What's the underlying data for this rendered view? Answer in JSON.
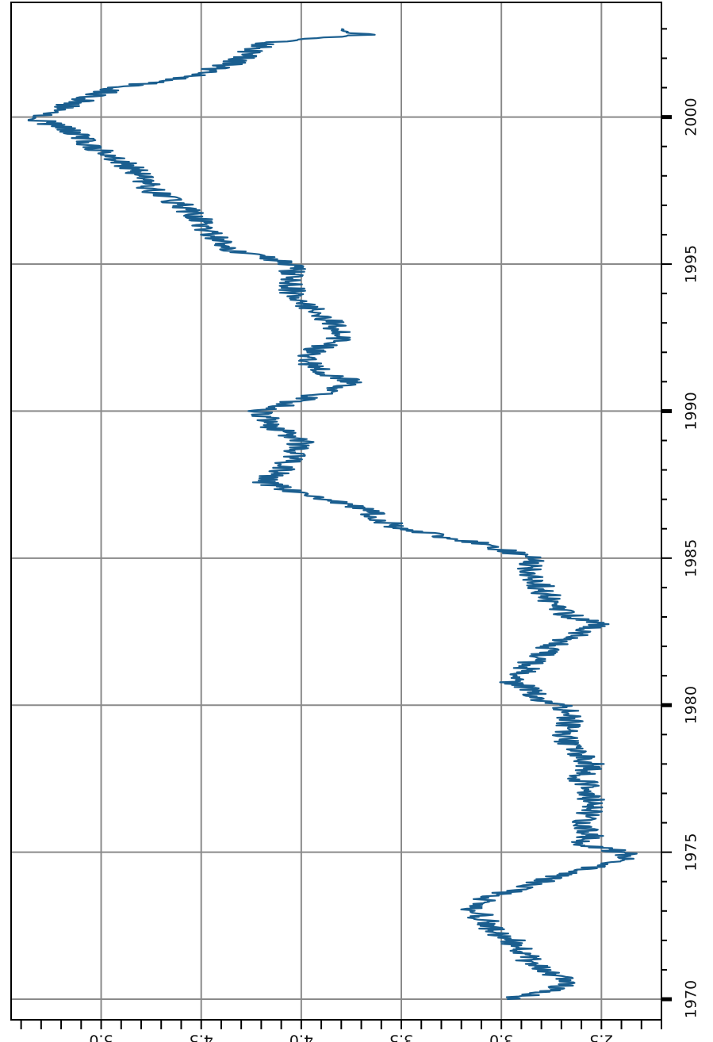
{
  "chart_data": {
    "type": "line",
    "title": "",
    "xlabel": "",
    "ylabel": "",
    "orientation": "rotated 90 degrees clockwise (time axis vertical on right, value axis horizontal at bottom, labels rotated)",
    "xlim": [
      1969.3,
      2003.9
    ],
    "ylim": [
      2.2,
      5.45
    ],
    "x_ticks": [
      "1970",
      "1975",
      "1980",
      "1985",
      "1990",
      "1995",
      "2000"
    ],
    "y_ticks": [
      "2.5",
      "3.0",
      "3.5",
      "4.0",
      "4.5",
      "5.0"
    ],
    "grid": true,
    "colors": {
      "line": "#1a5e8f",
      "grid": "#8a8a8a",
      "axis": "#000000"
    },
    "series": [
      {
        "x": [
          1970.0,
          1970.3,
          1970.6,
          1970.9,
          1971.2,
          1971.6,
          1972.0,
          1972.4,
          1972.8,
          1973.1,
          1973.5,
          1973.9,
          1974.2,
          1974.5,
          1974.8,
          1975.0,
          1975.3,
          1975.6,
          1976.0,
          1976.5,
          1977.0,
          1977.5,
          1978.0,
          1978.5,
          1979.0,
          1979.5,
          1980.0,
          1980.2,
          1980.5,
          1980.8,
          1981.0,
          1981.5,
          1982.0,
          1982.5,
          1982.8,
          1983.0,
          1983.5,
          1984.0,
          1984.5,
          1985.0,
          1985.5,
          1986.0,
          1986.3,
          1986.7,
          1987.0,
          1987.3,
          1987.6,
          1988.0,
          1988.5,
          1989.0,
          1989.5,
          1990.0,
          1990.5,
          1991.0,
          1991.5,
          1992.0,
          1992.5,
          1993.0,
          1993.5,
          1994.0,
          1994.5,
          1995.0,
          1995.5,
          1996.0,
          1996.5,
          1997.0,
          1997.5,
          1998.0,
          1998.5,
          1999.0,
          1999.5,
          2000.0,
          2000.3,
          2000.7,
          2001.0,
          2001.4,
          2001.8,
          2002.2,
          2002.5,
          2002.8,
          2003.0
        ],
        "y": [
          2.95,
          2.75,
          2.65,
          2.75,
          2.85,
          2.9,
          2.95,
          3.05,
          3.1,
          3.15,
          3.05,
          2.85,
          2.7,
          2.55,
          2.35,
          2.4,
          2.6,
          2.55,
          2.6,
          2.55,
          2.55,
          2.6,
          2.55,
          2.65,
          2.7,
          2.65,
          2.7,
          2.8,
          2.85,
          2.95,
          2.9,
          2.85,
          2.75,
          2.6,
          2.5,
          2.65,
          2.75,
          2.8,
          2.85,
          2.85,
          3.1,
          3.5,
          3.6,
          3.7,
          3.9,
          4.05,
          4.2,
          4.1,
          4.05,
          4.0,
          4.15,
          4.2,
          3.95,
          3.75,
          3.95,
          3.95,
          3.8,
          3.85,
          3.95,
          4.05,
          4.05,
          4.05,
          4.35,
          4.45,
          4.5,
          4.6,
          4.75,
          4.8,
          4.9,
          5.05,
          5.15,
          5.35,
          5.2,
          5.05,
          4.9,
          4.55,
          4.35,
          4.25,
          4.2,
          3.7,
          3.8
        ]
      }
    ]
  }
}
